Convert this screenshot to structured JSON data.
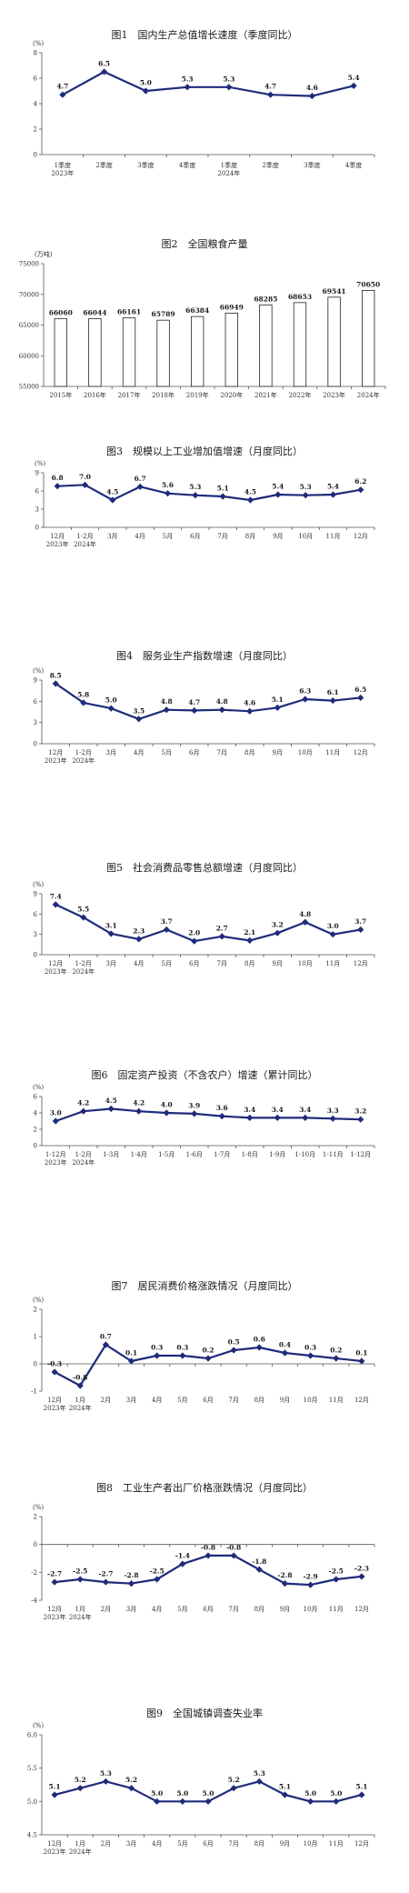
{
  "chart_data": [
    {
      "type": "line",
      "title": "图1　国内生产总值增长速度（季度同比）",
      "unit": "(%)",
      "categories": [
        "1季度",
        "2季度",
        "3季度",
        "4季度",
        "1季度",
        "2季度",
        "3季度",
        "4季度"
      ],
      "year_labels": [
        {
          "index": 0,
          "text": "2023年"
        },
        {
          "index": 4,
          "text": "2024年"
        }
      ],
      "values": [
        4.7,
        6.5,
        5.0,
        5.3,
        5.3,
        4.7,
        4.6,
        5.4
      ],
      "value_labels": [
        "4.7",
        "6.5",
        "5.0",
        "5.3",
        "5.3",
        "4.7",
        "4.6",
        "5.4"
      ],
      "ylim": [
        0,
        8
      ],
      "yticks": [
        0,
        2,
        4,
        6,
        8
      ],
      "ytick_labels": [
        "0",
        "2",
        "4",
        "6",
        "8"
      ],
      "color": "#1f2b7a"
    },
    {
      "type": "bar",
      "title": "图2　全国粮食产量",
      "unit": "(万吨)",
      "categories": [
        "2015年",
        "2016年",
        "2017年",
        "2018年",
        "2019年",
        "2020年",
        "2021年",
        "2022年",
        "2023年",
        "2024年"
      ],
      "values": [
        66060,
        66044,
        66161,
        65789,
        66384,
        66949,
        68285,
        68653,
        69541,
        70650
      ],
      "value_labels": [
        "66060",
        "66044",
        "66161",
        "65789",
        "66384",
        "66949",
        "68285",
        "68653",
        "69541",
        "70650"
      ],
      "ylim": [
        55000,
        75000
      ],
      "yticks": [
        55000,
        60000,
        65000,
        70000,
        75000
      ],
      "ytick_labels": [
        "55000",
        "60000",
        "65000",
        "70000",
        "75000"
      ]
    },
    {
      "type": "line",
      "title": "图3　规模以上工业增加值增速（月度同比）",
      "unit": "(%)",
      "categories": [
        "12月",
        "1-2月",
        "3月",
        "4月",
        "5月",
        "6月",
        "7月",
        "8月",
        "9月",
        "10月",
        "11月",
        "12月"
      ],
      "year_labels": [
        {
          "index": 0,
          "text": "2023年"
        },
        {
          "index": 1,
          "text": "2024年"
        }
      ],
      "values": [
        6.8,
        7.0,
        4.5,
        6.7,
        5.6,
        5.3,
        5.1,
        4.5,
        5.4,
        5.3,
        5.4,
        6.2
      ],
      "value_labels": [
        "6.8",
        "7.0",
        "4.5",
        "6.7",
        "5.6",
        "5.3",
        "5.1",
        "4.5",
        "5.4",
        "5.3",
        "5.4",
        "6.2"
      ],
      "ylim": [
        0,
        9
      ],
      "yticks": [
        0,
        3,
        6,
        9
      ],
      "ytick_labels": [
        "0",
        "3",
        "6",
        "9"
      ],
      "color": "#1f2b7a"
    },
    {
      "type": "line",
      "title": "图4　服务业生产指数增速（月度同比）",
      "unit": "(%)",
      "categories": [
        "12月",
        "1-2月",
        "3月",
        "4月",
        "5月",
        "6月",
        "7月",
        "8月",
        "9月",
        "10月",
        "11月",
        "12月"
      ],
      "year_labels": [
        {
          "index": 0,
          "text": "2023年"
        },
        {
          "index": 1,
          "text": "2024年"
        }
      ],
      "values": [
        8.5,
        5.8,
        5.0,
        3.5,
        4.8,
        4.7,
        4.8,
        4.6,
        5.1,
        6.3,
        6.1,
        6.5
      ],
      "value_labels": [
        "8.5",
        "5.8",
        "5.0",
        "3.5",
        "4.8",
        "4.7",
        "4.8",
        "4.6",
        "5.1",
        "6.3",
        "6.1",
        "6.5"
      ],
      "ylim": [
        0,
        9
      ],
      "yticks": [
        0,
        3,
        6,
        9
      ],
      "ytick_labels": [
        "0",
        "3",
        "6",
        "9"
      ],
      "color": "#1f2b7a"
    },
    {
      "type": "line",
      "title": "图5　社会消费品零售总额增速（月度同比）",
      "unit": "(%)",
      "categories": [
        "12月",
        "1-2月",
        "3月",
        "4月",
        "5月",
        "6月",
        "7月",
        "8月",
        "9月",
        "10月",
        "11月",
        "12月"
      ],
      "year_labels": [
        {
          "index": 0,
          "text": "2023年"
        },
        {
          "index": 1,
          "text": "2024年"
        }
      ],
      "values": [
        7.4,
        5.5,
        3.1,
        2.3,
        3.7,
        2.0,
        2.7,
        2.1,
        3.2,
        4.8,
        3.0,
        3.7
      ],
      "value_labels": [
        "7.4",
        "5.5",
        "3.1",
        "2.3",
        "3.7",
        "2.0",
        "2.7",
        "2.1",
        "3.2",
        "4.8",
        "3.0",
        "3.7"
      ],
      "ylim": [
        0,
        9
      ],
      "yticks": [
        0,
        3,
        6,
        9
      ],
      "ytick_labels": [
        "0",
        "3",
        "6",
        "9"
      ],
      "color": "#1f2b7a"
    },
    {
      "type": "line",
      "title": "图6　固定资产投资（不含农户）增速（累计同比）",
      "unit": "(%)",
      "categories": [
        "1-12月",
        "1-2月",
        "1-3月",
        "1-4月",
        "1-5月",
        "1-6月",
        "1-7月",
        "1-8月",
        "1-9月",
        "1-10月",
        "1-11月",
        "1-12月"
      ],
      "year_labels": [
        {
          "index": 0,
          "text": "2023年"
        },
        {
          "index": 1,
          "text": "2024年"
        }
      ],
      "values": [
        3.0,
        4.2,
        4.5,
        4.2,
        4.0,
        3.9,
        3.6,
        3.4,
        3.4,
        3.4,
        3.3,
        3.2
      ],
      "value_labels": [
        "3.0",
        "4.2",
        "4.5",
        "4.2",
        "4.0",
        "3.9",
        "3.6",
        "3.4",
        "3.4",
        "3.4",
        "3.3",
        "3.2"
      ],
      "ylim": [
        0,
        6
      ],
      "yticks": [
        0,
        2,
        4,
        6
      ],
      "ytick_labels": [
        "0",
        "2",
        "4",
        "6"
      ],
      "color": "#1f2b7a"
    },
    {
      "type": "line",
      "title": "图7　居民消费价格涨跌情况（月度同比）",
      "unit": "(%)",
      "categories": [
        "12月",
        "1月",
        "2月",
        "3月",
        "4月",
        "5月",
        "6月",
        "7月",
        "8月",
        "9月",
        "10月",
        "11月",
        "12月"
      ],
      "year_labels": [
        {
          "index": 0,
          "text": "2023年"
        },
        {
          "index": 1,
          "text": "2024年"
        }
      ],
      "values": [
        -0.3,
        -0.8,
        0.7,
        0.1,
        0.3,
        0.3,
        0.2,
        0.5,
        0.6,
        0.4,
        0.3,
        0.2,
        0.1
      ],
      "value_labels": [
        "-0.3",
        "-0.8",
        "0.7",
        "0.1",
        "0.3",
        "0.3",
        "0.2",
        "0.5",
        "0.6",
        "0.4",
        "0.3",
        "0.2",
        "0.1"
      ],
      "ylim": [
        -1,
        2
      ],
      "yticks": [
        -1,
        0,
        1,
        2
      ],
      "ytick_labels": [
        "-1",
        "0",
        "1",
        "2"
      ],
      "color": "#1f2b7a"
    },
    {
      "type": "line",
      "title": "图8　工业生产者出厂价格涨跌情况（月度同比）",
      "unit": "(%)",
      "categories": [
        "12月",
        "1月",
        "2月",
        "3月",
        "4月",
        "5月",
        "6月",
        "7月",
        "8月",
        "9月",
        "10月",
        "11月",
        "12月"
      ],
      "year_labels": [
        {
          "index": 0,
          "text": "2023年"
        },
        {
          "index": 1,
          "text": "2024年"
        }
      ],
      "values": [
        -2.7,
        -2.5,
        -2.7,
        -2.8,
        -2.5,
        -1.4,
        -0.8,
        -0.8,
        -1.8,
        -2.8,
        -2.9,
        -2.5,
        -2.3
      ],
      "value_labels": [
        "-2.7",
        "-2.5",
        "-2.7",
        "-2.8",
        "-2.5",
        "-1.4",
        "-0.8",
        "-0.8",
        "-1.8",
        "-2.8",
        "-2.9",
        "-2.5",
        "-2.3"
      ],
      "ylim": [
        -4,
        2
      ],
      "yticks": [
        -4,
        -2,
        0,
        2
      ],
      "ytick_labels": [
        "-4",
        "-2",
        "0",
        "2"
      ],
      "color": "#1f2b7a"
    },
    {
      "type": "line",
      "title": "图9　全国城镇调查失业率",
      "unit": "(%)",
      "categories": [
        "12月",
        "1月",
        "2月",
        "3月",
        "4月",
        "5月",
        "6月",
        "7月",
        "8月",
        "9月",
        "10月",
        "11月",
        "12月"
      ],
      "year_labels": [
        {
          "index": 0,
          "text": "2023年"
        },
        {
          "index": 1,
          "text": "2024年"
        }
      ],
      "values": [
        5.1,
        5.2,
        5.3,
        5.2,
        5.0,
        5.0,
        5.0,
        5.2,
        5.3,
        5.1,
        5.0,
        5.0,
        5.1
      ],
      "value_labels": [
        "5.1",
        "5.2",
        "5.3",
        "5.2",
        "5.0",
        "5.0",
        "5.0",
        "5.2",
        "5.3",
        "5.1",
        "5.0",
        "5.0",
        "5.1"
      ],
      "ylim": [
        4.5,
        6.0
      ],
      "yticks": [
        4.5,
        5.0,
        5.5,
        6.0
      ],
      "ytick_labels": [
        "4.5",
        "5.0",
        "5.5",
        "6.0"
      ],
      "color": "#1f2b7a"
    }
  ]
}
